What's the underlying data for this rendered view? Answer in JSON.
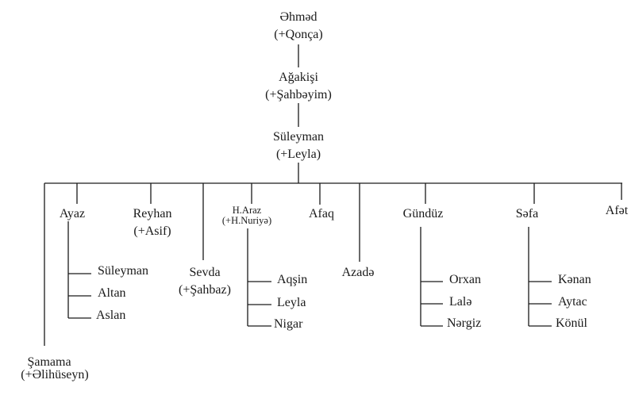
{
  "root": {
    "name": "Əhməd",
    "spouse": "(+Qonça)"
  },
  "gen2": {
    "name": "Ağakişi",
    "spouse": "(+Şahbəyim)"
  },
  "gen3": {
    "name": "Süleyman",
    "spouse": "(+Leyla)"
  },
  "children": [
    {
      "name": "Şamama",
      "spouse": "(+Əlihüseyn)"
    },
    {
      "name": "Ayaz",
      "children": [
        "Süleyman",
        "Altan",
        "Aslan"
      ]
    },
    {
      "name": "Reyhan",
      "spouse": "(+Asif)"
    },
    {
      "name": "Sevda",
      "spouse": "(+Şahbaz)"
    },
    {
      "name": "H.Araz",
      "spouse": "(+H.Nuriyə)",
      "children": [
        "Aqşin",
        "Leyla",
        "Nigar"
      ]
    },
    {
      "name": "Afaq"
    },
    {
      "name": "Azadə"
    },
    {
      "name": "Gündüz",
      "children": [
        "Orxan",
        "Lalə",
        "Nərgiz"
      ]
    },
    {
      "name": "Səfa",
      "children": [
        "Kənan",
        "Aytac",
        "Könül"
      ]
    },
    {
      "name": "Afət"
    }
  ]
}
